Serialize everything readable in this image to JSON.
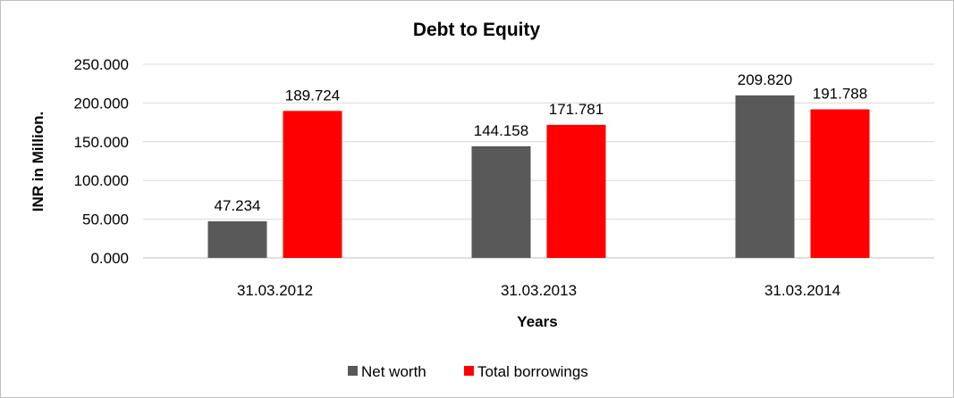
{
  "chart_data": {
    "type": "bar",
    "title": "Debt to Equity",
    "xlabel": "Years",
    "ylabel": "INR in Million.",
    "ylim": [
      0,
      250
    ],
    "yticks": [
      0,
      50,
      100,
      150,
      200,
      250
    ],
    "ytick_labels": [
      "0.000",
      "50.000",
      "100.000",
      "150.000",
      "200.000",
      "250.000"
    ],
    "categories": [
      "31.03.2012",
      "31.03.2013",
      "31.03.2014"
    ],
    "series": [
      {
        "name": "Net worth",
        "color": "#595959",
        "values": [
          47.234,
          144.158,
          209.82
        ],
        "labels": [
          "47.234",
          "144.158",
          "209.820"
        ]
      },
      {
        "name": "Total borrowings",
        "color": "#ff0000",
        "values": [
          189.724,
          171.781,
          191.788
        ],
        "labels": [
          "189.724",
          "171.781",
          "191.788"
        ]
      }
    ],
    "grid": true,
    "legend": "bottom"
  }
}
